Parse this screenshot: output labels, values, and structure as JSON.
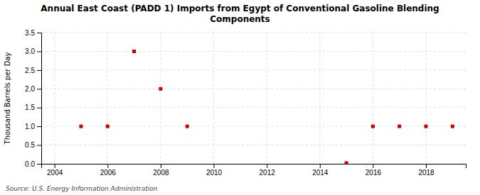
{
  "chart_data": {
    "type": "scatter",
    "title": "Annual East Coast (PADD 1) Imports from Egypt of Conventional Gasoline Blending\nComponents",
    "ylabel": "Thousand Barrels per Day",
    "source": "Source: U.S. Energy Information Administration",
    "x": [
      2005,
      2006,
      2007,
      2008,
      2009,
      2015,
      2016,
      2017,
      2018,
      2019
    ],
    "values": [
      1.0,
      1.0,
      3.0,
      2.0,
      1.0,
      0.02,
      1.0,
      1.0,
      1.0,
      1.0
    ],
    "color": "#cc0000",
    "marker": "square",
    "xlim": [
      2003.5,
      2019.5
    ],
    "ylim": [
      0.0,
      3.5
    ],
    "xticks": [
      2004,
      2006,
      2008,
      2010,
      2012,
      2014,
      2016,
      2018
    ],
    "yticks": [
      {
        "value": 0.0,
        "label": "0.0"
      },
      {
        "value": 0.5,
        "label": "0.5"
      },
      {
        "value": 1.0,
        "label": "1.0"
      },
      {
        "value": 1.5,
        "label": "1.5"
      },
      {
        "value": 2.0,
        "label": "2.0"
      },
      {
        "value": 2.5,
        "label": "2.5"
      },
      {
        "value": 3.0,
        "label": "3.0"
      },
      {
        "value": 3.5,
        "label": "3.5"
      }
    ],
    "grid": true
  }
}
